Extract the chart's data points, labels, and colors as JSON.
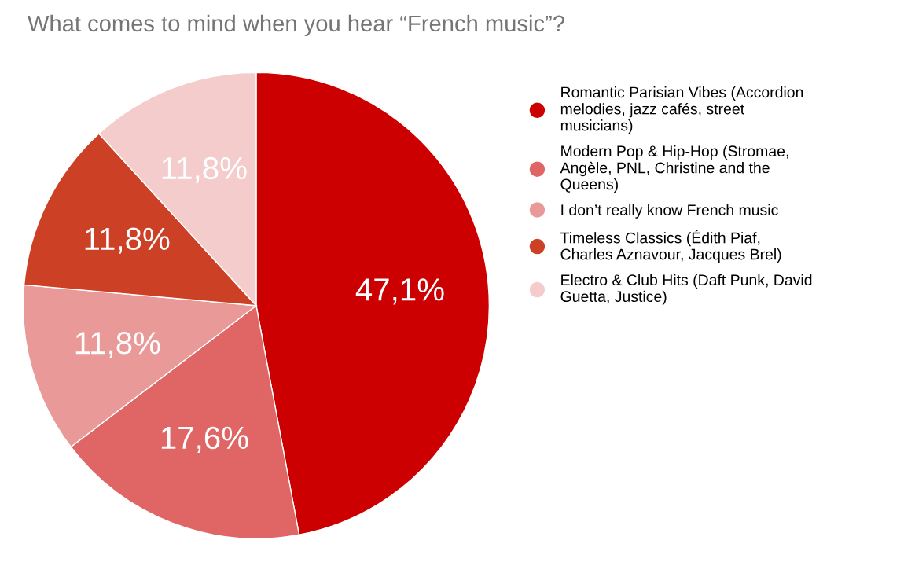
{
  "chart_data": {
    "type": "pie",
    "title": "What comes to mind when you hear “French music”?",
    "categories": [
      "Romantic Parisian Vibes (Accordion melodies, jazz cafés, street musicians)",
      "Modern Pop & Hip-Hop (Stromae, Angèle, PNL, Christine and the Queens)",
      "I don’t really know French music",
      "Timeless Classics (Édith Piaf, Charles Aznavour, Jacques Brel)",
      "Electro & Club Hits (Daft Punk, David Guetta, Justice)"
    ],
    "values": [
      47.1,
      17.6,
      11.8,
      11.8,
      11.8
    ],
    "value_labels": [
      "47,1%",
      "17,6%",
      "11,8%",
      "11,8%",
      "11,8%"
    ],
    "colors": [
      "#cc0000",
      "#e06666",
      "#ea9999",
      "#cc4125",
      "#f4cccc"
    ],
    "legend": "right"
  }
}
